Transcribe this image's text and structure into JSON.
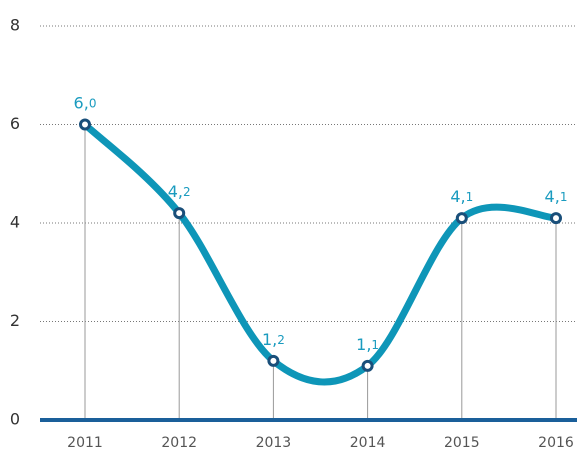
{
  "chart_data": {
    "type": "line",
    "categories": [
      "2011",
      "2012",
      "2013",
      "2014",
      "2015",
      "2016"
    ],
    "values": [
      6.0,
      4.2,
      1.2,
      1.1,
      4.1,
      4.1
    ],
    "value_labels": [
      "6,0",
      "4,2",
      "1,2",
      "1,1",
      "4,1",
      "4,1"
    ],
    "color": "#0e96b8",
    "ylim": [
      0,
      8
    ],
    "yticks": [
      0,
      2,
      4,
      6,
      8
    ],
    "grid": true
  }
}
